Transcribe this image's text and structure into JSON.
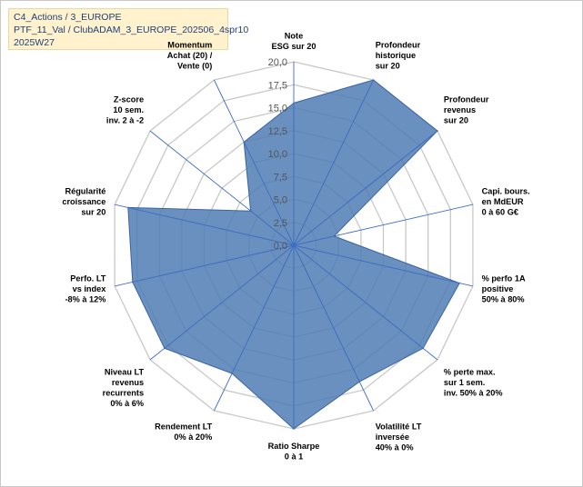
{
  "header": {
    "line1": "C4_Actions / 3_EUROPE",
    "line2": "PTF_11_Val / ClubADAM_3_EUROPE_202506_4spr10",
    "line3": "2025W27"
  },
  "colors": {
    "fill": "#4f7cb4",
    "stroke": "#3a64a3",
    "grid": "#c8c8c8",
    "spoke": "#3d6cc1",
    "header_bg": "#fff2cc"
  },
  "chart_data": {
    "type": "radar",
    "rmin": 0,
    "rmax": 20,
    "tick_values": [
      0,
      2.5,
      5,
      7.5,
      10,
      12.5,
      15,
      17.5,
      20
    ],
    "tick_labels": [
      "0,0",
      "2,5",
      "5,0",
      "7,5",
      "10,0",
      "12,5",
      "15,0",
      "17,5",
      "20,0"
    ],
    "axes": [
      {
        "lines": [
          "Note",
          "ESG sur 20"
        ]
      },
      {
        "lines": [
          "Profondeur",
          "historique",
          "sur 20"
        ]
      },
      {
        "lines": [
          "Profondeur",
          "revenus",
          "sur 20"
        ]
      },
      {
        "lines": [
          "Capi. bours.",
          "en MdEUR",
          "0 à 60 G€"
        ]
      },
      {
        "lines": [
          "% perfo 1A",
          "positive",
          "50% à 80%"
        ]
      },
      {
        "lines": [
          "% perte max.",
          "sur 1 sem.",
          "inv. 50% à 20%"
        ]
      },
      {
        "lines": [
          "Volatilité LT",
          "inversée",
          "40% à 0%"
        ]
      },
      {
        "lines": [
          "Ratio Sharpe",
          "0 à 1"
        ]
      },
      {
        "lines": [
          "Rendement LT",
          "0% à 20%"
        ]
      },
      {
        "lines": [
          "Niveau LT",
          "revenus",
          "recurrents",
          "0% à 6%"
        ]
      },
      {
        "lines": [
          "Perfo. LT",
          "vs index",
          "-8% à 12%"
        ]
      },
      {
        "lines": [
          "Régularité",
          "croissance",
          "sur 20"
        ]
      },
      {
        "lines": [
          "Z-score",
          "10 sem.",
          "inv. 2 à -2"
        ]
      },
      {
        "lines": [
          "Momentum",
          "Achat (20) /",
          "Vente (0)"
        ]
      }
    ],
    "series": [
      {
        "values": [
          15.5,
          20,
          20,
          4.5,
          18.5,
          18,
          16.5,
          20,
          15.5,
          18,
          18,
          18.5,
          6,
          12.5
        ]
      }
    ]
  }
}
